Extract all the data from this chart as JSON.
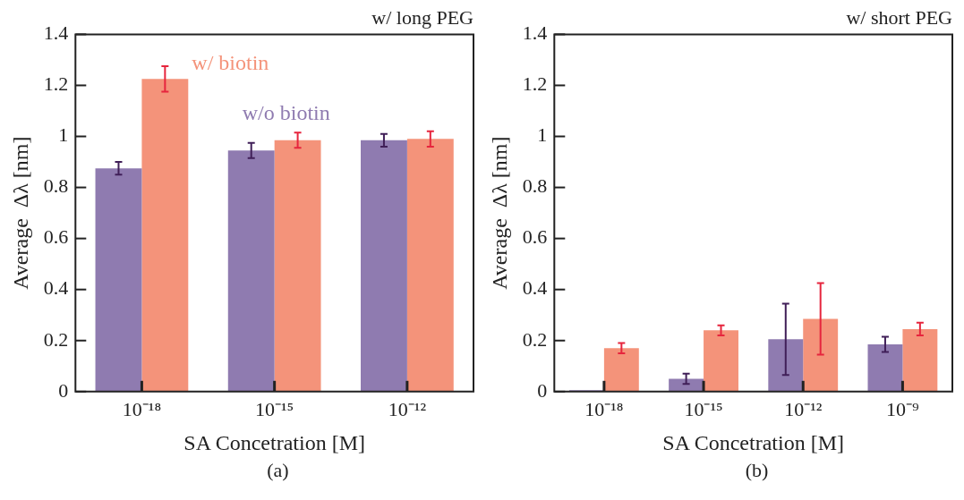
{
  "chart_data": [
    {
      "type": "bar",
      "title": "w/ long PEG",
      "xlabel": "SA Concetration [M]",
      "ylabel": "Average  Δλ [nm]",
      "annotations": [
        "(a)"
      ],
      "categories": [
        "10⁻¹⁸",
        "10⁻¹⁵",
        "10⁻¹²"
      ],
      "series": [
        {
          "name": "w/o biotin",
          "color": "#8f7bb0",
          "values": [
            0.875,
            0.945,
            0.985
          ],
          "errors": [
            0.025,
            0.03,
            0.025
          ]
        },
        {
          "name": "w/ biotin",
          "color": "#f4937a",
          "values": [
            1.225,
            0.985,
            0.99
          ],
          "errors": [
            0.05,
            0.03,
            0.03
          ]
        }
      ],
      "ylim": [
        0,
        1.4
      ],
      "yticks": [
        0,
        0.2,
        0.4,
        0.6,
        0.8,
        1,
        1.2,
        1.4
      ],
      "grid": false,
      "legend": false
    },
    {
      "type": "bar",
      "title": "w/ short PEG",
      "xlabel": "SA Concetration [M]",
      "ylabel": "Average  Δλ [nm]",
      "annotations": [
        "(b)"
      ],
      "categories": [
        "10⁻¹⁸",
        "10⁻¹⁵",
        "10⁻¹²",
        "10⁻⁹"
      ],
      "series": [
        {
          "color": "#8f7bb0",
          "values": [
            0.005,
            0.05,
            0.205,
            0.185
          ],
          "errors": [
            null,
            0.02,
            0.14,
            0.03
          ]
        },
        {
          "color": "#f4937a",
          "values": [
            0.17,
            0.24,
            0.285,
            0.245
          ],
          "errors": [
            0.02,
            0.02,
            0.14,
            0.025
          ]
        }
      ],
      "ylim": [
        0,
        1.4
      ],
      "yticks": [
        0,
        0.2,
        0.4,
        0.6,
        0.8,
        1,
        1.2,
        1.4
      ],
      "grid": false,
      "legend": false
    }
  ]
}
